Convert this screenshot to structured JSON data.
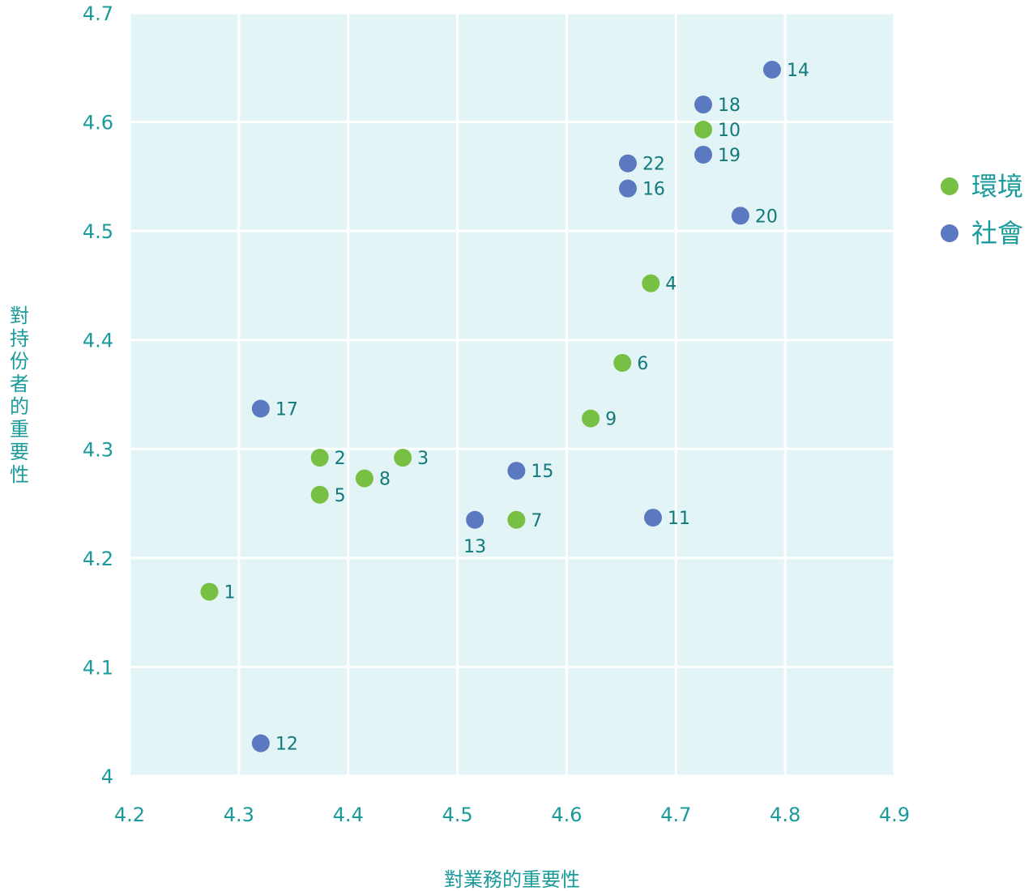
{
  "chart_data": {
    "type": "scatter",
    "title": "",
    "xlabel": "對業務的重要性",
    "ylabel": "對持份者的重要性",
    "xlim": [
      4.2,
      4.9
    ],
    "ylim": [
      4.0,
      4.7
    ],
    "x_ticks": [
      "4.2",
      "4.3",
      "4.4",
      "4.5",
      "4.6",
      "4.7",
      "4.8",
      "4.9"
    ],
    "y_ticks": [
      "4",
      "4.1",
      "4.2",
      "4.3",
      "4.4",
      "4.5",
      "4.6",
      "4.7"
    ],
    "grid": true,
    "legend_position": "right",
    "series": [
      {
        "name": "環境",
        "color": "#77c043",
        "points": [
          {
            "label": "1",
            "x": 4.273,
            "y": 4.169
          },
          {
            "label": "2",
            "x": 4.374,
            "y": 4.292
          },
          {
            "label": "3",
            "x": 4.45,
            "y": 4.292
          },
          {
            "label": "4",
            "x": 4.677,
            "y": 4.452
          },
          {
            "label": "5",
            "x": 4.374,
            "y": 4.258
          },
          {
            "label": "6",
            "x": 4.651,
            "y": 4.379
          },
          {
            "label": "7",
            "x": 4.554,
            "y": 4.235
          },
          {
            "label": "8",
            "x": 4.415,
            "y": 4.273
          },
          {
            "label": "9",
            "x": 4.622,
            "y": 4.328
          },
          {
            "label": "10",
            "x": 4.725,
            "y": 4.593
          }
        ]
      },
      {
        "name": "社會",
        "color": "#5b79c0",
        "points": [
          {
            "label": "11",
            "x": 4.679,
            "y": 4.237
          },
          {
            "label": "12",
            "x": 4.32,
            "y": 4.03
          },
          {
            "label": "13",
            "x": 4.516,
            "y": 4.235
          },
          {
            "label": "14",
            "x": 4.788,
            "y": 4.648
          },
          {
            "label": "15",
            "x": 4.554,
            "y": 4.28
          },
          {
            "label": "16",
            "x": 4.656,
            "y": 4.539
          },
          {
            "label": "17",
            "x": 4.32,
            "y": 4.337
          },
          {
            "label": "18",
            "x": 4.725,
            "y": 4.616
          },
          {
            "label": "19",
            "x": 4.725,
            "y": 4.57
          },
          {
            "label": "20",
            "x": 4.759,
            "y": 4.514
          },
          {
            "label": "22",
            "x": 4.656,
            "y": 4.562
          }
        ]
      }
    ]
  }
}
